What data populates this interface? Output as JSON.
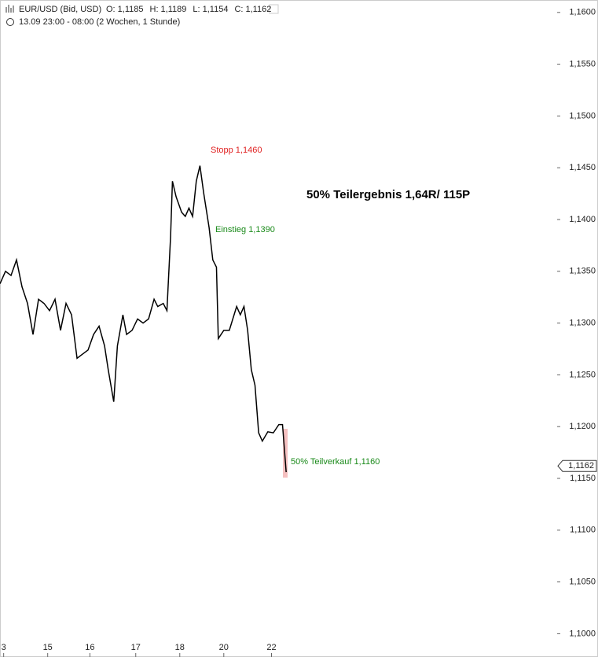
{
  "chart_data": {
    "type": "line",
    "symbol": "EUR/USD (Bid, USD)",
    "ohlc_labels": [
      "O: 1,1185",
      "H: 1,1189",
      "L: 1,1154",
      "C: 1,1162"
    ],
    "subtitle": "13.09 23:00 - 08:00 (2 Wochen, 1 Stunde)",
    "annotations": [
      {
        "text": "Stopp 1,1460",
        "color": "#e02020"
      },
      {
        "text": "Einstieg 1,1390",
        "color": "#1a8a1a"
      },
      {
        "text": "50% Teilergebnis 1,64R/ 115P",
        "color": "#000000"
      },
      {
        "text": "50% Teilverkauf 1,1160",
        "color": "#1a8a1a"
      }
    ],
    "last_price": {
      "value": 1.1162,
      "label": "1,1162"
    },
    "x": [
      0,
      3,
      6,
      9,
      12,
      15,
      18,
      21,
      24,
      27,
      30,
      33,
      36,
      39,
      42,
      45,
      48,
      51,
      54,
      57,
      59,
      62,
      64,
      67,
      69,
      72,
      75,
      78,
      81,
      84,
      86,
      89,
      91,
      93,
      94,
      96,
      99,
      101,
      103,
      105,
      107,
      109,
      111,
      114,
      116,
      118,
      119,
      122,
      125,
      129,
      131,
      133,
      135,
      137,
      139,
      141,
      143,
      146,
      149,
      152,
      154,
      156
    ],
    "series": [
      {
        "color": "#000000",
        "values": [
          1.1338,
          1.135,
          1.1346,
          1.1361,
          1.1335,
          1.1319,
          1.1289,
          1.1323,
          1.1319,
          1.1312,
          1.1323,
          1.1293,
          1.1319,
          1.1308,
          1.1266,
          1.127,
          1.1274,
          1.1289,
          1.1297,
          1.1278,
          1.1255,
          1.1224,
          1.1278,
          1.1308,
          1.1289,
          1.1293,
          1.1304,
          1.13,
          1.1304,
          1.1323,
          1.1316,
          1.1319,
          1.1312,
          1.1384,
          1.1437,
          1.1422,
          1.1407,
          1.1403,
          1.1411,
          1.1403,
          1.1437,
          1.1452,
          1.1426,
          1.1392,
          1.1361,
          1.1354,
          1.1285,
          1.1293,
          1.1293,
          1.1316,
          1.1308,
          1.1316,
          1.1293,
          1.1255,
          1.124,
          1.1194,
          1.1186,
          1.1195,
          1.1194,
          1.1202,
          1.1202,
          1.1156
        ]
      }
    ],
    "xlim": [
      0,
      302
    ],
    "xticks": [
      {
        "value": 2,
        "label": "3"
      },
      {
        "value": 26,
        "label": "15"
      },
      {
        "value": 49,
        "label": "16"
      },
      {
        "value": 74,
        "label": "17"
      },
      {
        "value": 98,
        "label": "18"
      },
      {
        "value": 122,
        "label": "20"
      },
      {
        "value": 148,
        "label": "22"
      }
    ],
    "ylim": [
      1.0995,
      1.1612
    ],
    "yticks": [
      {
        "value": 1.1,
        "label": "1,1000"
      },
      {
        "value": 1.105,
        "label": "1,1050"
      },
      {
        "value": 1.11,
        "label": "1,1100"
      },
      {
        "value": 1.115,
        "label": "1,1150"
      },
      {
        "value": 1.12,
        "label": "1,1200"
      },
      {
        "value": 1.125,
        "label": "1,1250"
      },
      {
        "value": 1.13,
        "label": "1,1300"
      },
      {
        "value": 1.135,
        "label": "1,1350"
      },
      {
        "value": 1.14,
        "label": "1,1400"
      },
      {
        "value": 1.145,
        "label": "1,1450"
      },
      {
        "value": 1.15,
        "label": "1,1500"
      },
      {
        "value": 1.155,
        "label": "1,1550"
      },
      {
        "value": 1.16,
        "label": "1,1600"
      }
    ]
  }
}
